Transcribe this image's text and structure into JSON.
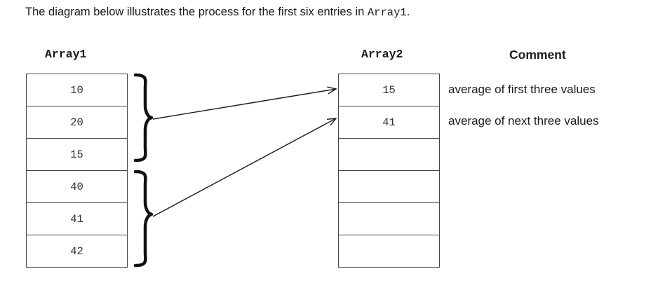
{
  "intro": {
    "text_before": "The diagram below illustrates the process for the first six entries in ",
    "code": "Array1",
    "text_after": "."
  },
  "array1": {
    "title": "Array1",
    "values": [
      "10",
      "20",
      "15",
      "40",
      "41",
      "42"
    ]
  },
  "array2": {
    "title": "Array2",
    "values": [
      "15",
      "41",
      "",
      "",
      "",
      ""
    ]
  },
  "comment": {
    "title": "Comment",
    "rows": [
      "average of first three values",
      "average of next three values"
    ]
  }
}
